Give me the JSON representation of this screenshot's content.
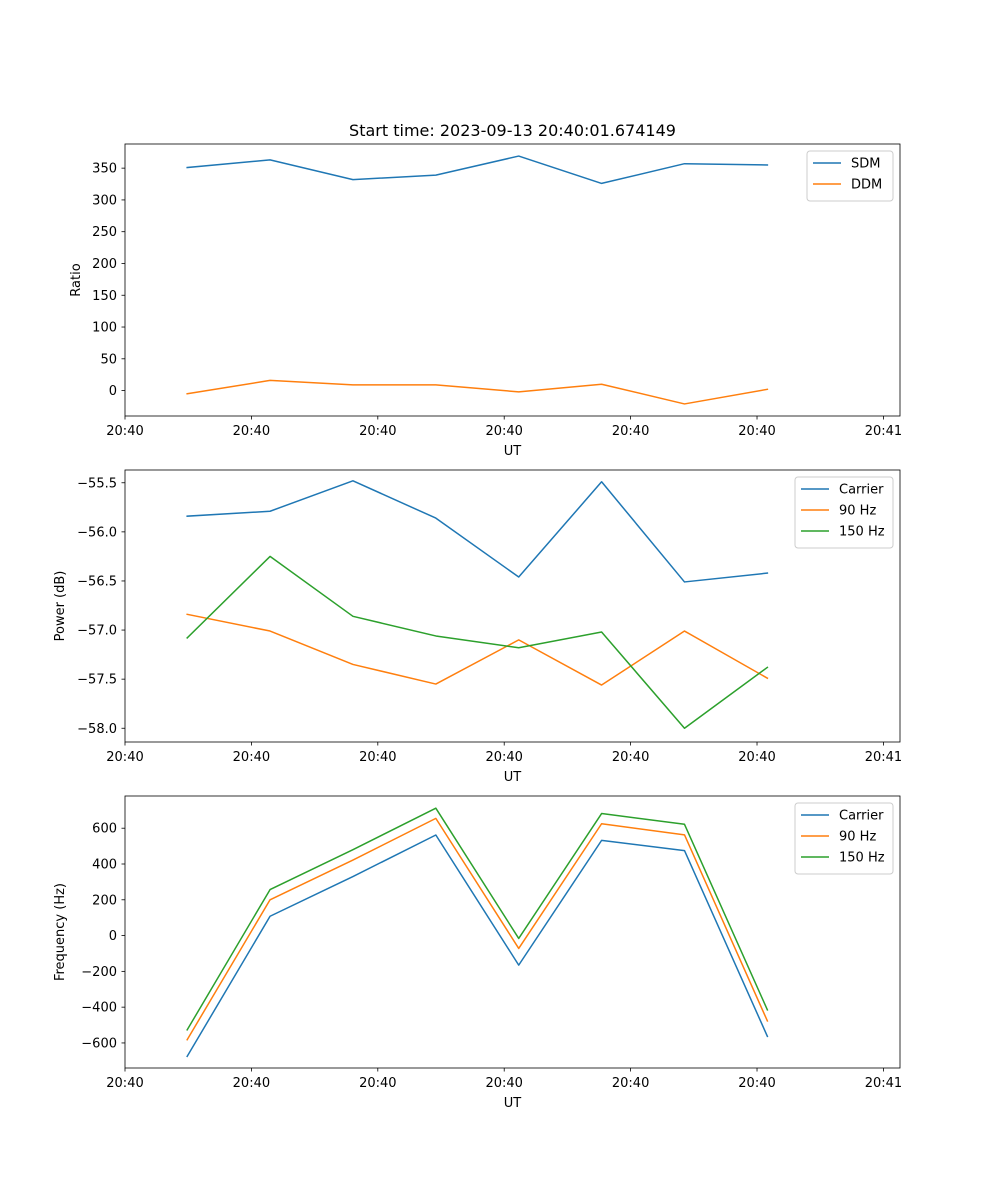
{
  "title": "Start time: 2023-09-13 20:40:01.674149",
  "chart_data": [
    {
      "type": "line",
      "ylabel": "Ratio",
      "xlabel": "UT",
      "ylim": [
        -40,
        388
      ],
      "xlim": [
        -0.75,
        8.6
      ],
      "x": [
        0,
        1,
        2,
        3,
        4,
        5,
        6,
        7
      ],
      "x_ticks": [
        -0.75,
        0.775,
        2.3,
        3.825,
        5.35,
        6.875,
        8.4
      ],
      "x_tick_labels": [
        "20:40",
        "20:40",
        "20:40",
        "20:40",
        "20:40",
        "20:40",
        "20:41"
      ],
      "y_ticks": [
        0,
        50,
        100,
        150,
        200,
        250,
        300,
        350
      ],
      "y_tick_labels": [
        "0",
        "50",
        "100",
        "150",
        "200",
        "250",
        "300",
        "350"
      ],
      "series": [
        {
          "name": "SDM",
          "color": "#1f77b4",
          "values": [
            351,
            363,
            332,
            339,
            369,
            326,
            357,
            355
          ]
        },
        {
          "name": "DDM",
          "color": "#ff7f0e",
          "values": [
            -5,
            16,
            9,
            9,
            -2,
            10,
            -21,
            2
          ]
        }
      ]
    },
    {
      "type": "line",
      "ylabel": "Power (dB)",
      "xlabel": "UT",
      "ylim": [
        -58.14,
        -55.37
      ],
      "xlim": [
        -0.75,
        8.6
      ],
      "x": [
        0,
        1,
        2,
        3,
        4,
        5,
        6,
        7
      ],
      "x_ticks": [
        -0.75,
        0.775,
        2.3,
        3.825,
        5.35,
        6.875,
        8.4
      ],
      "x_tick_labels": [
        "20:40",
        "20:40",
        "20:40",
        "20:40",
        "20:40",
        "20:40",
        "20:41"
      ],
      "y_ticks": [
        -58.0,
        -57.5,
        -57.0,
        -56.5,
        -56.0,
        -55.5
      ],
      "y_tick_labels": [
        "−58.0",
        "−57.5",
        "−57.0",
        "−56.5",
        "−56.0",
        "−55.5"
      ],
      "series": [
        {
          "name": "Carrier",
          "color": "#1f77b4",
          "values": [
            -55.84,
            -55.79,
            -55.48,
            -55.86,
            -56.46,
            -55.49,
            -56.51,
            -56.42
          ]
        },
        {
          "name": "90 Hz",
          "color": "#ff7f0e",
          "values": [
            -56.84,
            -57.01,
            -57.35,
            -57.55,
            -57.1,
            -57.56,
            -57.01,
            -57.49
          ]
        },
        {
          "name": "150 Hz",
          "color": "#2ca02c",
          "values": [
            -57.08,
            -56.25,
            -56.86,
            -57.06,
            -57.18,
            -57.02,
            -58.0,
            -57.38
          ]
        }
      ]
    },
    {
      "type": "line",
      "ylabel": "Frequency (Hz)",
      "xlabel": "UT",
      "ylim": [
        -740,
        780
      ],
      "xlim": [
        -0.75,
        8.6
      ],
      "x": [
        0,
        1,
        2,
        3,
        4,
        5,
        6,
        7
      ],
      "x_ticks": [
        -0.75,
        0.775,
        2.3,
        3.825,
        5.35,
        6.875,
        8.4
      ],
      "x_tick_labels": [
        "20:40",
        "20:40",
        "20:40",
        "20:40",
        "20:40",
        "20:40",
        "20:41"
      ],
      "y_ticks": [
        -600,
        -400,
        -200,
        0,
        200,
        400,
        600
      ],
      "y_tick_labels": [
        "−600",
        "−400",
        "−200",
        "0",
        "200",
        "400",
        "600"
      ],
      "series": [
        {
          "name": "Carrier",
          "color": "#1f77b4",
          "values": [
            -675,
            108,
            330,
            562,
            -165,
            532,
            475,
            -563
          ]
        },
        {
          "name": "90 Hz",
          "color": "#ff7f0e",
          "values": [
            -582,
            200,
            422,
            655,
            -72,
            625,
            563,
            -477
          ]
        },
        {
          "name": "150 Hz",
          "color": "#2ca02c",
          "values": [
            -527,
            257,
            480,
            712,
            -16,
            682,
            622,
            -415
          ]
        }
      ]
    }
  ]
}
